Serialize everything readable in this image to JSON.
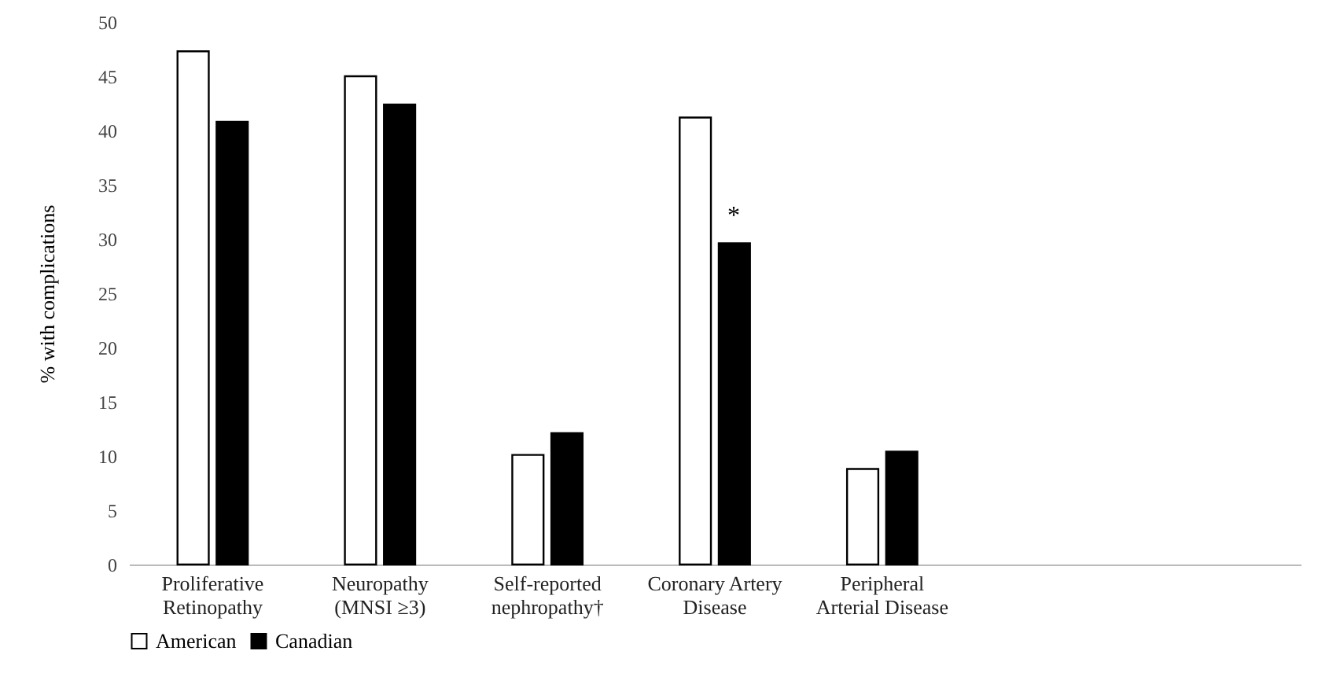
{
  "chart_data": {
    "type": "bar",
    "ylabel": "% with complications",
    "categories": [
      "Proliferative\nRetinopathy",
      "Neuropathy\n(MNSI ≥3)",
      "Self-reported\nnephropathy†",
      "Coronary Artery\nDisease",
      "Peripheral\nArterial Disease",
      null,
      null
    ],
    "series": [
      {
        "name": "American",
        "color": "#ffffff",
        "values": [
          47.3,
          45.0,
          10.1,
          41.2,
          8.8,
          null,
          null
        ]
      },
      {
        "name": "Canadian",
        "color": "#000000",
        "values": [
          40.8,
          42.4,
          12.1,
          29.6,
          10.4,
          null,
          null
        ]
      }
    ],
    "ylim": [
      0,
      50
    ],
    "yticks": [
      0,
      5,
      10,
      15,
      20,
      25,
      30,
      35,
      40,
      45,
      50
    ],
    "grid": false,
    "legend": "bottom",
    "annotations": [
      {
        "text": "*",
        "x": "Coronary Artery\nDisease",
        "y": 31
      }
    ]
  }
}
